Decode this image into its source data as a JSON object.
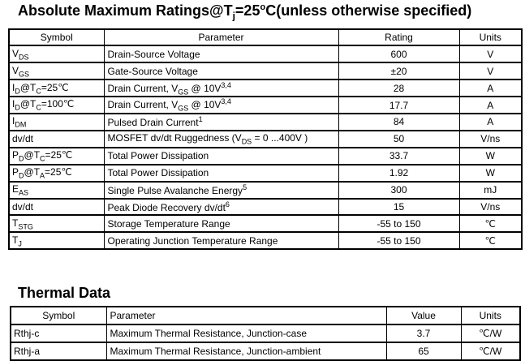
{
  "amr_section": {
    "title": "Absolute Maximum Ratings@T~j~=25^o^C(unless otherwise specified)",
    "table": {
      "headers": {
        "symbol": "Symbol",
        "parameter": "Parameter",
        "rating": "Rating",
        "units": "Units"
      },
      "rows": [
        {
          "symbol": "V~DS~",
          "parameter": "Drain-Source Voltage",
          "rating": "600",
          "units": "V"
        },
        {
          "symbol": "V~GS~",
          "parameter": "Gate-Source Voltage",
          "rating": "±20",
          "units": "V"
        },
        {
          "symbol": "I~D~@T~C~=25℃",
          "parameter": "Drain Current, V~GS~ @ 10V^3,4^",
          "rating": "28",
          "units": "A"
        },
        {
          "symbol": "I~D~@T~C~=100℃",
          "parameter": "Drain Current, V~GS~ @ 10V^3,4^",
          "rating": "17.7",
          "units": "A"
        },
        {
          "symbol": "I~DM~",
          "parameter": "Pulsed Drain Current^1^",
          "rating": "84",
          "units": "A"
        },
        {
          "symbol": "dv/dt",
          "parameter": "MOSFET dv/dt Ruggedness (V~DS~ = 0 ...400V )",
          "rating": "50",
          "units": "V/ns"
        },
        {
          "symbol": "P~D~@T~C~=25℃",
          "parameter": "Total Power Dissipation",
          "rating": "33.7",
          "units": "W"
        },
        {
          "symbol": "P~D~@T~A~=25℃",
          "parameter": "Total Power Dissipation",
          "rating": "1.92",
          "units": "W"
        },
        {
          "symbol": "E~AS~",
          "parameter": "Single Pulse Avalanche Energy^5^",
          "rating": "300",
          "units": "mJ"
        },
        {
          "symbol": "dv/dt",
          "parameter": "Peak Diode Recovery dv/dt^6^",
          "rating": "15",
          "units": "V/ns"
        },
        {
          "symbol": "T~STG~",
          "parameter": "Storage Temperature Range",
          "rating": "-55 to 150",
          "units": "℃"
        },
        {
          "symbol": "T~J~",
          "parameter": "Operating Junction Temperature Range",
          "rating": "-55 to 150",
          "units": "℃"
        }
      ]
    }
  },
  "thermal_section": {
    "title": "Thermal Data",
    "table": {
      "headers": {
        "symbol": "Symbol",
        "parameter": "Parameter",
        "value": "Value",
        "units": "Units"
      },
      "rows": [
        {
          "symbol": "Rthj-c",
          "parameter": "Maximum Thermal Resistance, Junction-case",
          "value": "3.7",
          "units": "℃/W"
        },
        {
          "symbol": "Rthj-a",
          "parameter": "Maximum Thermal Resistance, Junction-ambient",
          "value": "65",
          "units": "℃/W"
        }
      ]
    }
  }
}
